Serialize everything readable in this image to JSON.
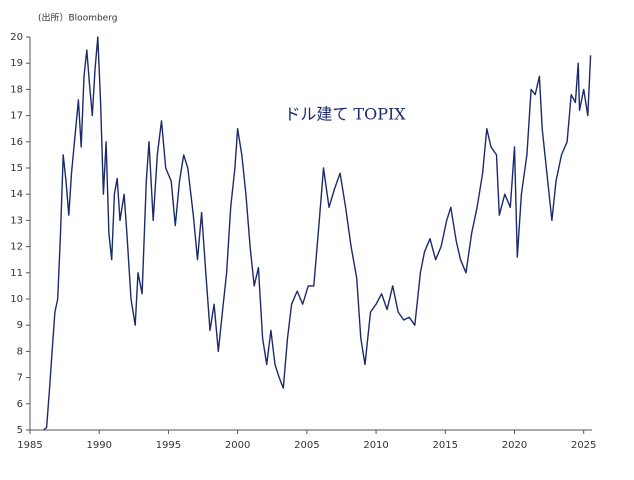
{
  "chart_data": {
    "type": "line",
    "source_note": "(出所）Bloomberg",
    "title": "ドル建て TOPIX",
    "x": [
      1986.0,
      1986.2,
      1986.4,
      1986.6,
      1986.8,
      1987.0,
      1987.2,
      1987.4,
      1987.6,
      1987.8,
      1988.0,
      1988.3,
      1988.5,
      1988.7,
      1988.9,
      1989.1,
      1989.3,
      1989.5,
      1989.7,
      1989.9,
      1990.1,
      1990.3,
      1990.5,
      1990.7,
      1990.9,
      1991.1,
      1991.3,
      1991.5,
      1991.8,
      1992.0,
      1992.3,
      1992.6,
      1992.8,
      1993.1,
      1993.4,
      1993.6,
      1993.9,
      1994.2,
      1994.5,
      1994.8,
      1995.2,
      1995.5,
      1995.8,
      1996.1,
      1996.4,
      1996.8,
      1997.1,
      1997.4,
      1997.7,
      1998.0,
      1998.3,
      1998.6,
      1998.9,
      1999.2,
      1999.5,
      1999.8,
      2000.0,
      2000.3,
      2000.6,
      2000.9,
      2001.2,
      2001.5,
      2001.8,
      2002.1,
      2002.4,
      2002.7,
      2003.0,
      2003.3,
      2003.6,
      2003.9,
      2004.3,
      2004.7,
      2005.1,
      2005.5,
      2005.9,
      2006.2,
      2006.6,
      2007.0,
      2007.4,
      2007.8,
      2008.2,
      2008.6,
      2008.9,
      2009.2,
      2009.6,
      2010.0,
      2010.4,
      2010.8,
      2011.2,
      2011.6,
      2012.0,
      2012.4,
      2012.8,
      2013.2,
      2013.5,
      2013.9,
      2014.3,
      2014.7,
      2015.1,
      2015.4,
      2015.8,
      2016.1,
      2016.5,
      2016.9,
      2017.3,
      2017.7,
      2018.0,
      2018.3,
      2018.7,
      2018.9,
      2019.3,
      2019.7,
      2020.0,
      2020.2,
      2020.5,
      2020.9,
      2021.2,
      2021.5,
      2021.8,
      2022.0,
      2022.4,
      2022.7,
      2023.0,
      2023.4,
      2023.8,
      2024.1,
      2024.4,
      2024.6,
      2024.7,
      2025.0,
      2025.3,
      2025.5
    ],
    "series": [
      {
        "name": "ドル建て TOPIX",
        "color": "#1c2a6b",
        "values": [
          5.0,
          5.1,
          6.5,
          8.0,
          9.5,
          10.0,
          12.5,
          15.5,
          14.5,
          13.2,
          14.8,
          16.5,
          17.6,
          15.8,
          18.5,
          19.5,
          18.2,
          17.0,
          18.8,
          20.0,
          17.5,
          14.0,
          16.0,
          12.5,
          11.5,
          14.0,
          14.6,
          13.0,
          14.0,
          12.5,
          10.0,
          9.0,
          11.0,
          10.2,
          14.5,
          16.0,
          13.0,
          15.5,
          16.8,
          15.0,
          14.5,
          12.8,
          14.5,
          15.5,
          15.0,
          13.2,
          11.5,
          13.3,
          11.0,
          8.8,
          9.8,
          8.0,
          9.5,
          11.0,
          13.5,
          15.0,
          16.5,
          15.5,
          14.0,
          12.0,
          10.5,
          11.2,
          8.5,
          7.5,
          8.8,
          7.5,
          7.0,
          6.6,
          8.5,
          9.8,
          10.3,
          9.8,
          10.5,
          10.5,
          13.0,
          15.0,
          13.5,
          14.2,
          14.8,
          13.5,
          12.0,
          10.8,
          8.5,
          7.5,
          9.5,
          9.8,
          10.2,
          9.6,
          10.5,
          9.5,
          9.2,
          9.3,
          9.0,
          11.0,
          11.8,
          12.3,
          11.5,
          12.0,
          13.0,
          13.5,
          12.2,
          11.5,
          11.0,
          12.5,
          13.5,
          14.8,
          16.5,
          15.8,
          15.5,
          13.2,
          14.0,
          13.5,
          15.8,
          11.6,
          14.0,
          15.5,
          18.0,
          17.8,
          18.5,
          16.5,
          14.5,
          13.0,
          14.5,
          15.5,
          16.0,
          17.8,
          17.5,
          19.0,
          17.2,
          18.0,
          17.0,
          19.3
        ]
      }
    ],
    "xlim": [
      1985,
      2025.6
    ],
    "xticks": [
      1985,
      1990,
      1995,
      2000,
      2005,
      2010,
      2015,
      2020,
      2025
    ],
    "ylim": [
      5,
      20
    ],
    "yticks": [
      5,
      6,
      7,
      8,
      9,
      10,
      11,
      12,
      13,
      14,
      15,
      16,
      17,
      18,
      19,
      20
    ],
    "grid": false
  }
}
